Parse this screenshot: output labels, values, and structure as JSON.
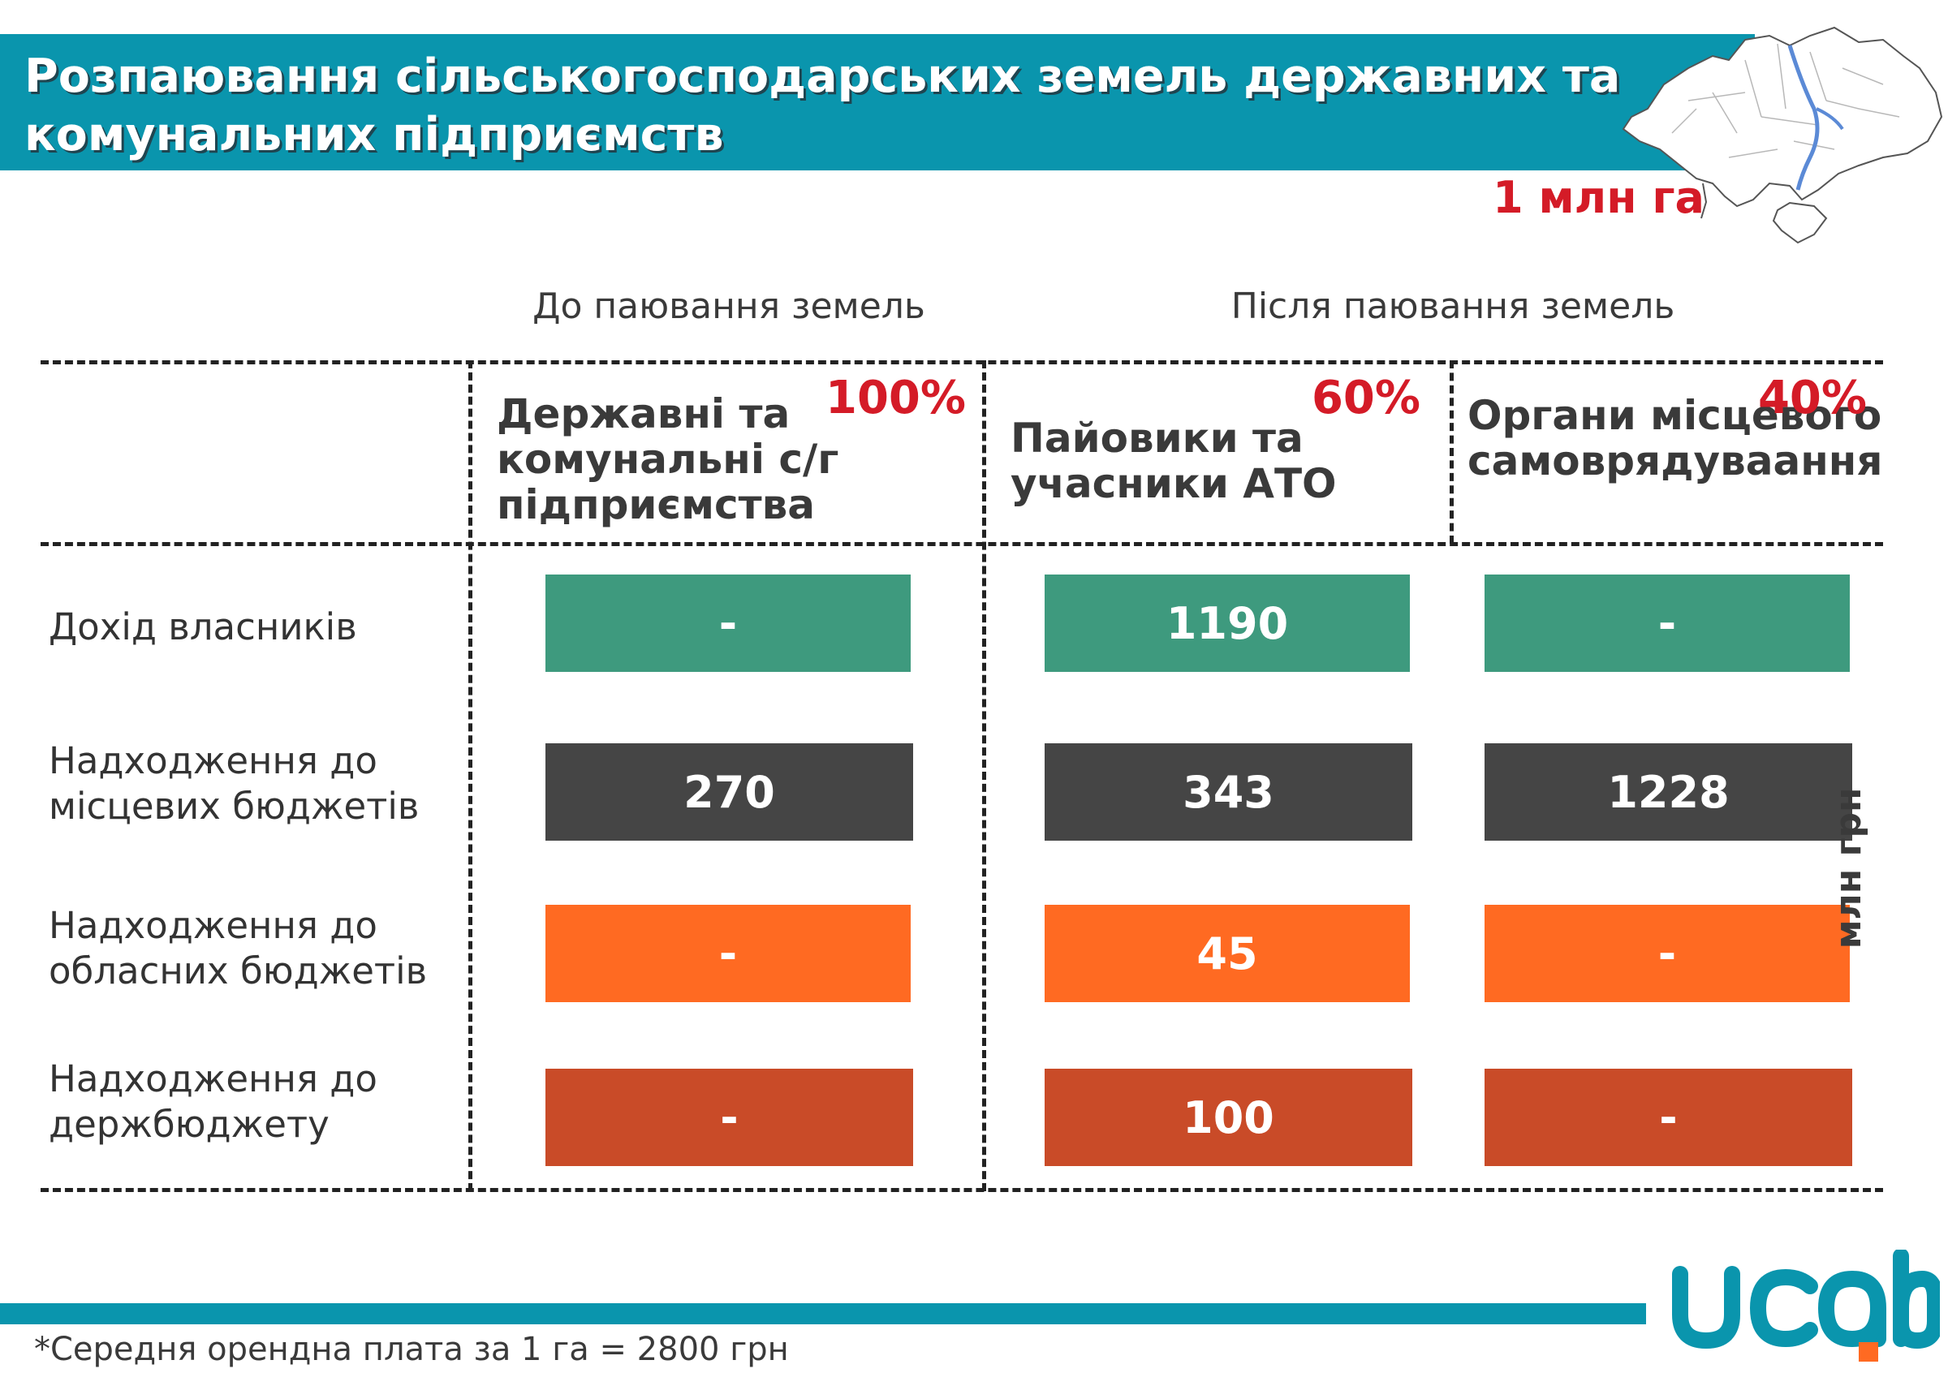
{
  "title": "Розпаювання сільськогосподарських земель державних та комунальних підприємств",
  "area": "1 млн га",
  "sections": {
    "before": "До паювання земель",
    "after": "Після паювання земель"
  },
  "columns": [
    {
      "label": "Державні та комунальні с/г підприємства",
      "pct": "100%"
    },
    {
      "label": "Пайовики та учасники АТО",
      "pct": "60%"
    },
    {
      "label": "Органи місцевого самоврядуваання",
      "pct": "40%"
    }
  ],
  "rows": [
    {
      "label": "Дохід власників",
      "color": "#3e9a7e"
    },
    {
      "label": "Надходження до місцевих бюджетів",
      "color": "#454545"
    },
    {
      "label": "Надходження до обласних бюджетів",
      "color": "#ff6a22"
    },
    {
      "label": "Надходження до держбюджету",
      "color": "#c94b28"
    }
  ],
  "unit": "млн грн",
  "footnote": "*Середня орендна плата за 1 га = 2800 грн",
  "logo_text": "ucab",
  "chart_data": {
    "type": "table",
    "title": "Розпаювання сільськогосподарських земель державних та комунальних підприємств",
    "unit": "млн грн",
    "row_labels": [
      "Дохід власників",
      "Надходження до місцевих бюджетів",
      "Надходження до обласних бюджетів",
      "Надходження до держбюджету"
    ],
    "column_labels": [
      "Державні та комунальні с/г підприємства",
      "Пайовики та учасники АТО",
      "Органи місцевого самоврядуваання"
    ],
    "cells": [
      [
        "-",
        "1190",
        "-"
      ],
      [
        "270",
        "343",
        "1228"
      ],
      [
        "-",
        "45",
        "-"
      ],
      [
        "-",
        "100",
        "-"
      ]
    ]
  }
}
